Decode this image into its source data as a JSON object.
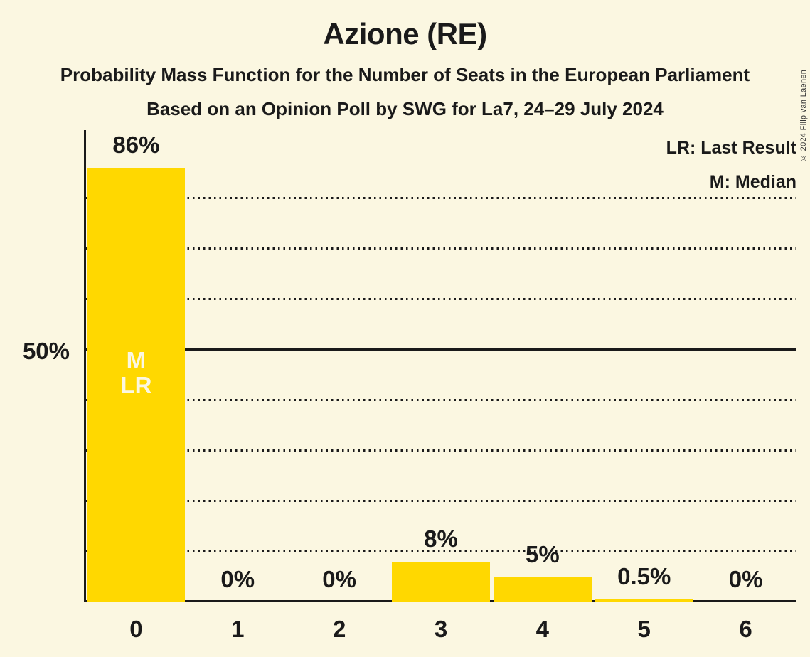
{
  "header": {
    "title": "Azione (RE)",
    "subtitle1": "Probability Mass Function for the Number of Seats in the European Parliament",
    "subtitle2": "Based on an Opinion Poll by SWG for La7, 24–29 July 2024"
  },
  "legend": {
    "lines": [
      "LR: Last Result",
      "M: Median"
    ]
  },
  "copyright": "© 2024 Filip van Laenen",
  "colors": {
    "background": "#FBF7E1",
    "bar": "#FFD800",
    "text": "#1A1A1A",
    "bar_annotation_text": "#FBF7E1"
  },
  "chart_data": {
    "type": "bar",
    "title": "Azione (RE)",
    "categories": [
      "0",
      "1",
      "2",
      "3",
      "4",
      "5",
      "6"
    ],
    "values": [
      86,
      0,
      0,
      8,
      5,
      0.5,
      0
    ],
    "value_labels": [
      "86%",
      "0%",
      "0%",
      "8%",
      "5%",
      "0.5%",
      "0%"
    ],
    "xlabel": "",
    "ylabel": "",
    "ylim": [
      0,
      93.5
    ],
    "y_reference": {
      "value": 50,
      "label": "50%",
      "style": "solid"
    },
    "dotted_gridlines_pct": [
      10,
      20,
      30,
      40,
      60,
      70,
      80
    ],
    "grid": "horizontal dotted, solid reference at 50%",
    "legend_position": "top-right",
    "bar_annotations": [
      {
        "category_index": 0,
        "lines": [
          "M",
          "LR"
        ]
      }
    ]
  }
}
